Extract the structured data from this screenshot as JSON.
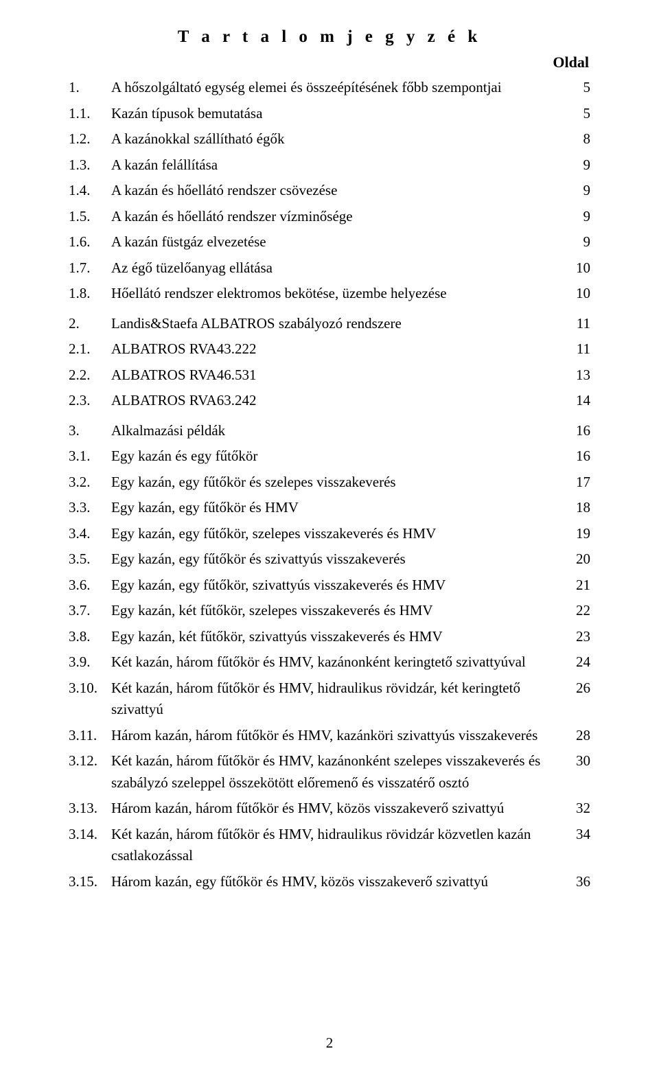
{
  "title": "T a r t a l o m j e g y z é k",
  "page_label": "Oldal",
  "page_number": "2",
  "groups": [
    [
      {
        "n": "1.",
        "t": "A hőszolgáltató egység elemei és összeépítésének főbb szempontjai",
        "p": "5"
      },
      {
        "n": "1.1.",
        "t": "Kazán típusok bemutatása",
        "p": "5"
      },
      {
        "n": "1.2.",
        "t": "A kazánokkal szállítható égők",
        "p": "8"
      },
      {
        "n": "1.3.",
        "t": "A kazán felállítása",
        "p": "9"
      },
      {
        "n": "1.4.",
        "t": "A kazán és hőellátó rendszer csövezése",
        "p": "9"
      },
      {
        "n": "1.5.",
        "t": "A kazán és hőellátó rendszer vízminősége",
        "p": "9"
      },
      {
        "n": "1.6.",
        "t": "A kazán füstgáz elvezetése",
        "p": "9"
      },
      {
        "n": "1.7.",
        "t": "Az égő tüzelőanyag ellátása",
        "p": "10"
      },
      {
        "n": "1.8.",
        "t": "Hőellátó rendszer elektromos bekötése, üzembe helyezése",
        "p": "10"
      }
    ],
    [
      {
        "n": "2.",
        "t": "Landis&Staefa  ALBATROS szabályozó rendszere",
        "p": "11"
      },
      {
        "n": "2.1.",
        "t": "ALBATROS  RVA43.222",
        "p": "11"
      },
      {
        "n": "2.2.",
        "t": "ALBATROS  RVA46.531",
        "p": "13"
      },
      {
        "n": "2.3.",
        "t": "ALBATROS  RVA63.242",
        "p": "14"
      }
    ],
    [
      {
        "n": "3.",
        "t": "Alkalmazási példák",
        "p": "16"
      },
      {
        "n": "3.1.",
        "t": "Egy kazán és egy fűtőkör",
        "p": "16"
      },
      {
        "n": "3.2.",
        "t": "Egy kazán, egy fűtőkör és szelepes visszakeverés",
        "p": "17"
      },
      {
        "n": "3.3.",
        "t": "Egy kazán, egy fűtőkör és HMV",
        "p": "18"
      },
      {
        "n": "3.4.",
        "t": "Egy kazán, egy fűtőkör, szelepes visszakeverés és HMV",
        "p": "19"
      },
      {
        "n": "3.5.",
        "t": "Egy kazán, egy fűtőkör és szivattyús visszakeverés",
        "p": "20"
      },
      {
        "n": "3.6.",
        "t": "Egy kazán, egy fűtőkör, szivattyús visszakeverés és HMV",
        "p": "21"
      },
      {
        "n": "3.7.",
        "t": "Egy kazán, két fűtőkör, szelepes visszakeverés és HMV",
        "p": "22"
      },
      {
        "n": "3.8.",
        "t": "Egy kazán, két fűtőkör, szivattyús visszakeverés és HMV",
        "p": "23"
      },
      {
        "n": "3.9.",
        "t": "Két kazán, három fűtőkör és HMV, kazánonként keringtető szivattyúval",
        "p": "24"
      },
      {
        "n": "3.10.",
        "t": "Két kazán, három fűtőkör és HMV, hidraulikus rövidzár, két keringtető szivattyú",
        "p": "26"
      },
      {
        "n": "3.11.",
        "t": "Három kazán, három fűtőkör és HMV, kazánköri szivattyús visszakeverés",
        "p": "28"
      },
      {
        "n": "3.12.",
        "t": "Két kazán, három fűtőkör és HMV, kazánonként szelepes visszakeverés és szabályzó szeleppel összekötött előremenő és visszatérő osztó",
        "p": "30"
      },
      {
        "n": "3.13.",
        "t": "Három kazán, három fűtőkör és HMV, közös visszakeverő szivattyú",
        "p": "32"
      },
      {
        "n": "3.14.",
        "t": "Két kazán, három fűtőkör és HMV, hidraulikus rövidzár közvetlen kazán csatlakozással",
        "p": "34"
      },
      {
        "n": "3.15.",
        "t": "Három kazán, egy fűtőkör és HMV, közös visszakeverő szivattyú",
        "p": "36"
      }
    ]
  ]
}
